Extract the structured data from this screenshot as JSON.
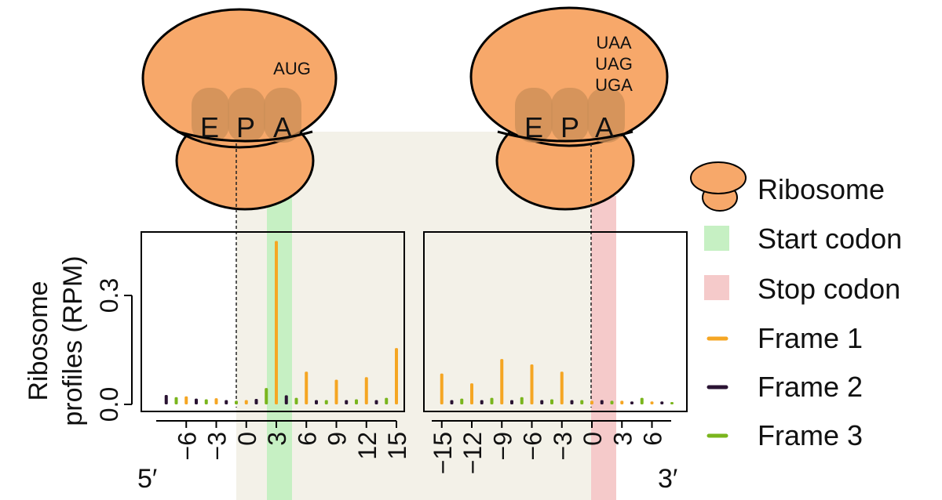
{
  "colors": {
    "cds_shade": "#f3f1e8",
    "start_shade": "#c6f0c3",
    "stop_shade": "#f5caca",
    "ribosome_fill": "#f7a86a",
    "ribosome_light": "#fcd2ae",
    "ribosome_site": "#cd8f57",
    "frame1": "#f5a623",
    "frame2": "#2a1333",
    "frame3": "#7ab51d"
  },
  "ribosome_left": {
    "codon_lines": [
      "AUG"
    ],
    "sites": [
      "E",
      "P",
      "A"
    ]
  },
  "ribosome_right": {
    "codon_lines": [
      "UAA",
      "UAG",
      "UGA"
    ],
    "sites": [
      "E",
      "P",
      "A"
    ]
  },
  "legend": {
    "ribosome": "Ribosome",
    "start_codon": "Start codon",
    "stop_codon": "Stop codon",
    "frame1": "Frame 1",
    "frame2": "Frame 2",
    "frame3": "Frame 3"
  },
  "end_labels": {
    "five_prime": "5′",
    "three_prime": "3′"
  },
  "chart_data": [
    {
      "type": "bar",
      "panel": "start",
      "ylabel_lines": [
        "Ribosome",
        "profiles (RPM)"
      ],
      "ylim": [
        0,
        0.46
      ],
      "yticks": [
        0.0,
        0.3
      ],
      "ytick_labels": [
        "0.0",
        "0.3"
      ],
      "xlim": [
        -9,
        15
      ],
      "xticks": [
        -6,
        -3,
        0,
        3,
        6,
        9,
        12,
        15
      ],
      "xtick_labels": [
        "−6",
        "−3",
        "0",
        "3",
        "6",
        "9",
        "12",
        "15"
      ],
      "bars": [
        {
          "x": -8,
          "frame": 2,
          "value": 0.026
        },
        {
          "x": -7,
          "frame": 3,
          "value": 0.02
        },
        {
          "x": -6,
          "frame": 1,
          "value": 0.022
        },
        {
          "x": -5,
          "frame": 2,
          "value": 0.016
        },
        {
          "x": -4,
          "frame": 3,
          "value": 0.014
        },
        {
          "x": -3,
          "frame": 1,
          "value": 0.017
        },
        {
          "x": -2,
          "frame": 2,
          "value": 0.012
        },
        {
          "x": -1,
          "frame": 3,
          "value": 0.01
        },
        {
          "x": 0,
          "frame": 1,
          "value": 0.012
        },
        {
          "x": 1,
          "frame": 2,
          "value": 0.015
        },
        {
          "x": 2,
          "frame": 3,
          "value": 0.045
        },
        {
          "x": 3,
          "frame": 1,
          "value": 0.45
        },
        {
          "x": 4,
          "frame": 2,
          "value": 0.025
        },
        {
          "x": 5,
          "frame": 3,
          "value": 0.018
        },
        {
          "x": 6,
          "frame": 1,
          "value": 0.09
        },
        {
          "x": 7,
          "frame": 2,
          "value": 0.012
        },
        {
          "x": 8,
          "frame": 3,
          "value": 0.012
        },
        {
          "x": 9,
          "frame": 1,
          "value": 0.068
        },
        {
          "x": 10,
          "frame": 2,
          "value": 0.012
        },
        {
          "x": 11,
          "frame": 3,
          "value": 0.014
        },
        {
          "x": 12,
          "frame": 1,
          "value": 0.075
        },
        {
          "x": 13,
          "frame": 2,
          "value": 0.012
        },
        {
          "x": 14,
          "frame": 3,
          "value": 0.018
        },
        {
          "x": 15,
          "frame": 1,
          "value": 0.155
        }
      ]
    },
    {
      "type": "bar",
      "panel": "stop",
      "ylim": [
        0,
        0.46
      ],
      "xlim": [
        -16,
        8
      ],
      "xticks": [
        -15,
        -12,
        -9,
        -6,
        -3,
        0,
        3,
        6
      ],
      "xtick_labels": [
        "−15",
        "−12",
        "−9",
        "−6",
        "−3",
        "0",
        "3",
        "6"
      ],
      "bars": [
        {
          "x": -15,
          "frame": 1,
          "value": 0.085
        },
        {
          "x": -14,
          "frame": 2,
          "value": 0.012
        },
        {
          "x": -13,
          "frame": 3,
          "value": 0.016
        },
        {
          "x": -12,
          "frame": 1,
          "value": 0.058
        },
        {
          "x": -11,
          "frame": 2,
          "value": 0.012
        },
        {
          "x": -10,
          "frame": 3,
          "value": 0.018
        },
        {
          "x": -9,
          "frame": 1,
          "value": 0.125
        },
        {
          "x": -8,
          "frame": 2,
          "value": 0.012
        },
        {
          "x": -7,
          "frame": 3,
          "value": 0.02
        },
        {
          "x": -6,
          "frame": 1,
          "value": 0.11
        },
        {
          "x": -5,
          "frame": 2,
          "value": 0.012
        },
        {
          "x": -4,
          "frame": 3,
          "value": 0.014
        },
        {
          "x": -3,
          "frame": 1,
          "value": 0.09
        },
        {
          "x": -2,
          "frame": 2,
          "value": 0.012
        },
        {
          "x": -1,
          "frame": 3,
          "value": 0.012
        },
        {
          "x": 0,
          "frame": 1,
          "value": 0.01
        },
        {
          "x": 1,
          "frame": 2,
          "value": 0.012
        },
        {
          "x": 2,
          "frame": 3,
          "value": 0.01
        },
        {
          "x": 3,
          "frame": 1,
          "value": 0.01
        },
        {
          "x": 4,
          "frame": 2,
          "value": 0.008
        },
        {
          "x": 5,
          "frame": 3,
          "value": 0.018
        },
        {
          "x": 6,
          "frame": 1,
          "value": 0.008
        },
        {
          "x": 7,
          "frame": 2,
          "value": 0.008
        },
        {
          "x": 8,
          "frame": 3,
          "value": 0.006
        }
      ]
    }
  ]
}
